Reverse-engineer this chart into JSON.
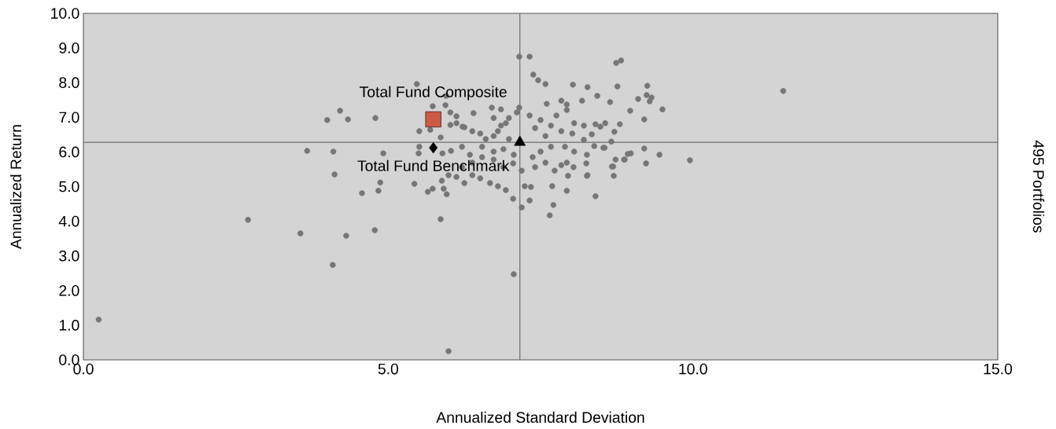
{
  "chart_data": {
    "type": "scatter",
    "xlabel": "Annualized Standard Deviation",
    "ylabel": "Annualized Return",
    "y2label": "495 Portfolios",
    "xlim": [
      0,
      15
    ],
    "ylim": [
      0,
      10
    ],
    "xticks": [
      {
        "value": 0,
        "label": "0.0"
      },
      {
        "value": 5,
        "label": "5.0"
      },
      {
        "value": 10,
        "label": "10.0"
      },
      {
        "value": 15,
        "label": "15.0"
      }
    ],
    "yticks": [
      {
        "value": 0,
        "label": "0.0"
      },
      {
        "value": 1,
        "label": "1.0"
      },
      {
        "value": 2,
        "label": "2.0"
      },
      {
        "value": 3,
        "label": "3.0"
      },
      {
        "value": 4,
        "label": "4.0"
      },
      {
        "value": 5,
        "label": "5.0"
      },
      {
        "value": 6,
        "label": "6.0"
      },
      {
        "value": 7,
        "label": "7.0"
      },
      {
        "value": 8,
        "label": "8.0"
      },
      {
        "value": 9,
        "label": "9.0"
      },
      {
        "value": 10,
        "label": "10.0"
      }
    ],
    "ref_lines": [
      {
        "axis": "x",
        "value": 7.16,
        "color": "#6e6e6e"
      },
      {
        "axis": "y",
        "value": 6.28,
        "color": "#6e6e6e"
      }
    ],
    "series": [
      {
        "color": "#767676",
        "marker": "circle",
        "x": [
          0.25,
          2.7,
          3.56,
          4.09,
          4.31,
          4.78,
          5.99,
          7.06,
          5.47,
          4.0,
          4.21,
          4.34,
          4.79,
          3.67,
          4.1,
          4.12,
          4.92,
          4.87,
          4.84,
          4.57,
          5.43,
          5.65,
          5.73,
          5.91,
          5.96,
          5.86,
          5.51,
          5.69,
          5.94,
          6.12,
          6.02,
          6.22,
          6.38,
          6.51,
          6.4,
          6.7,
          6.85,
          6.73,
          6.93,
          6.8,
          6.98,
          7.15,
          7.32,
          7.38,
          7.46,
          7.58,
          8.03,
          8.27,
          8.76,
          8.74,
          8.82,
          8.64,
          8.43,
          8.18,
          8.8,
          8.56,
          8.4,
          8.66,
          8.53,
          8.38,
          8.21,
          8.87,
          8.67,
          8.27,
          8.4,
          7.93,
          7.71,
          7.65,
          7.69,
          7.95,
          8.04,
          7.84,
          7.58,
          7.73,
          7.41,
          7.34,
          7.24,
          7.32,
          7.19,
          7.05,
          6.93,
          6.8,
          6.67,
          6.51,
          6.38,
          6.25,
          6.12,
          5.99,
          5.88,
          6.21,
          6.38,
          6.54,
          6.73,
          6.89,
          7.06,
          7.05,
          7.19,
          7.37,
          7.5,
          7.67,
          7.93,
          8.05,
          7.9,
          8.02,
          7.84,
          7.67,
          7.5,
          7.32,
          7.41,
          7.58,
          7.76,
          7.93,
          7.6,
          7.84,
          7.93,
          8.05,
          8.21,
          6.03,
          6.21,
          6.34,
          6.54,
          6.73,
          6.89,
          5.51,
          5.5,
          5.89,
          5.86,
          6.02,
          5.73,
          5.95,
          6.12,
          6.25,
          6.6,
          6.73,
          6.85,
          6.98,
          7.11,
          7.15,
          9.25,
          9.24,
          9.32,
          9.29,
          9.5,
          9.1,
          8.97,
          9.2,
          8.71,
          8.48,
          8.34,
          8.55,
          9.2,
          9.45,
          9.95,
          9.23,
          8.98,
          8.93,
          8.88,
          8.73,
          8.69,
          8.7,
          8.26,
          8.25,
          8.26,
          11.48
        ],
        "values": [
          1.16,
          4.04,
          3.65,
          2.74,
          3.58,
          3.74,
          0.25,
          2.47,
          7.96,
          6.92,
          7.19,
          6.94,
          6.98,
          6.03,
          6.01,
          5.35,
          5.96,
          5.12,
          4.88,
          4.81,
          5.08,
          4.85,
          4.94,
          4.94,
          4.78,
          4.06,
          6.6,
          6.64,
          7.35,
          7.03,
          6.78,
          6.73,
          6.6,
          6.53,
          7.12,
          7.28,
          7.23,
          6.98,
          6.83,
          6.6,
          6.37,
          8.75,
          8.75,
          8.23,
          8.07,
          7.96,
          7.94,
          7.87,
          7.89,
          8.57,
          8.64,
          7.44,
          7.62,
          7.48,
          6.8,
          6.83,
          6.8,
          6.3,
          6.12,
          6.17,
          6.35,
          5.78,
          5.58,
          5.33,
          4.72,
          4.88,
          4.47,
          4.17,
          5.01,
          5.31,
          5.56,
          5.62,
          5.69,
          5.46,
          5.56,
          4.99,
          5.01,
          4.6,
          4.4,
          4.65,
          4.9,
          5.01,
          5.1,
          5.24,
          5.33,
          5.1,
          5.28,
          5.33,
          5.17,
          5.56,
          5.69,
          5.85,
          5.78,
          5.56,
          5.92,
          5.67,
          5.46,
          5.85,
          6.01,
          6.15,
          5.69,
          6.01,
          6.15,
          6.53,
          6.6,
          6.76,
          6.92,
          7.05,
          6.69,
          6.46,
          7.05,
          7.21,
          7.39,
          7.48,
          7.37,
          6.83,
          6.76,
          6.03,
          6.15,
          5.92,
          6.15,
          6.01,
          6.08,
          6.15,
          5.96,
          5.96,
          6.42,
          7.14,
          7.32,
          7.62,
          6.83,
          6.71,
          6.37,
          6.46,
          6.76,
          6.98,
          7.14,
          7.28,
          7.91,
          7.64,
          7.57,
          7.46,
          7.23,
          7.53,
          7.19,
          6.94,
          6.58,
          6.73,
          6.51,
          6.12,
          6.1,
          5.92,
          5.76,
          5.67,
          5.96,
          5.94,
          5.78,
          5.78,
          5.58,
          5.31,
          5.31,
          5.67,
          5.92,
          7.76
        ]
      },
      {
        "name": "Total Fund Composite",
        "color": "#cd5a45",
        "marker": "square",
        "x": [
          5.74
        ],
        "values": [
          6.94
        ]
      },
      {
        "name": "Total Fund Benchmark",
        "color": "#000000",
        "marker": "diamond",
        "x": [
          5.74
        ],
        "values": [
          6.12
        ]
      },
      {
        "color": "#000000",
        "marker": "triangle",
        "x": [
          7.16
        ],
        "values": [
          6.28
        ]
      }
    ]
  }
}
